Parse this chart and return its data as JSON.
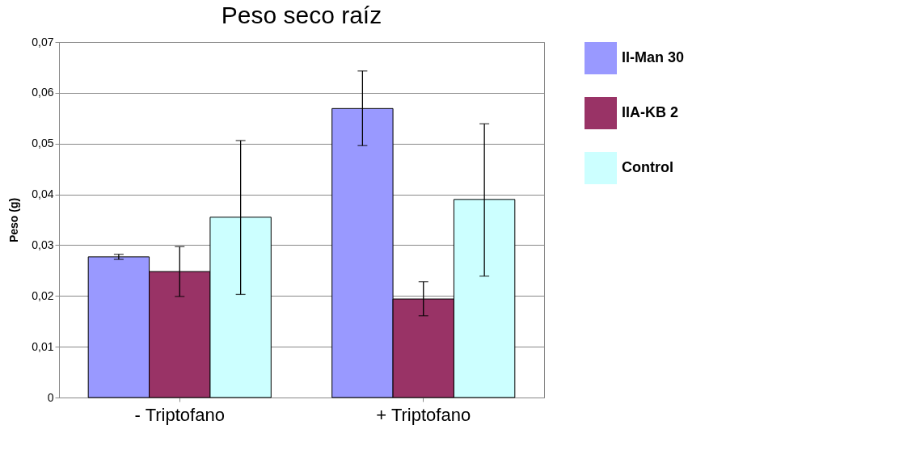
{
  "chart_data": {
    "type": "bar",
    "title": "Peso seco raíz",
    "ylabel": "Peso (g)",
    "categories": [
      "- Triptofano",
      "+ Triptofano"
    ],
    "series": [
      {
        "name": "II-Man 30",
        "color": "#9999ff",
        "values": [
          0.0277,
          0.0569
        ],
        "errors": [
          [
            0.0272,
            0.0282
          ],
          [
            0.0496,
            0.0643
          ]
        ]
      },
      {
        "name": "IIA-KB 2",
        "color": "#993366",
        "values": [
          0.0248,
          0.0194
        ],
        "errors": [
          [
            0.0199,
            0.0297
          ],
          [
            0.0161,
            0.0228
          ]
        ]
      },
      {
        "name": "Control",
        "color": "#ccffff",
        "values": [
          0.0355,
          0.039
        ],
        "errors": [
          [
            0.0203,
            0.0506
          ],
          [
            0.0239,
            0.0539
          ]
        ]
      }
    ],
    "ylim": [
      0,
      0.07
    ],
    "yticks": [
      {
        "value": 0,
        "label": "0"
      },
      {
        "value": 0.01,
        "label": "0,01"
      },
      {
        "value": 0.02,
        "label": "0,02"
      },
      {
        "value": 0.03,
        "label": "0,03"
      },
      {
        "value": 0.04,
        "label": "0,04"
      },
      {
        "value": 0.05,
        "label": "0,05"
      },
      {
        "value": 0.06,
        "label": "0,06"
      },
      {
        "value": 0.07,
        "label": "0,07"
      }
    ],
    "grid": "y",
    "legend": "right"
  }
}
